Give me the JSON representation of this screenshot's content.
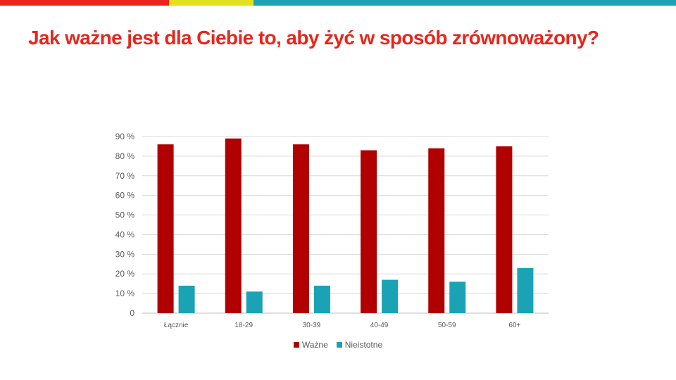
{
  "colors": {
    "stripe_red": "#e8251b",
    "stripe_yellow": "#e3e020",
    "stripe_teal": "#1aa3b5",
    "title": "#e8251b",
    "grid": "#d9d9d9",
    "axis": "#bfbfbf"
  },
  "slide": {
    "title": "Jak ważne jest dla Ciebie to, aby żyć w sposób zrównoważony?"
  },
  "chart_data": {
    "type": "bar",
    "categories": [
      "Łącznie",
      "18-29",
      "30-39",
      "40-49",
      "50-59",
      "60+"
    ],
    "series": [
      {
        "name": "Ważne",
        "color": "#b00000",
        "values": [
          86,
          89,
          86,
          83,
          84,
          85
        ]
      },
      {
        "name": "Nieistotne",
        "color": "#1aa3b5",
        "values": [
          14,
          11,
          14,
          17,
          16,
          23
        ]
      }
    ],
    "y_ticks": [
      "0",
      "10 %",
      "20 %",
      "30 %",
      "40 %",
      "50 %",
      "60 %",
      "70 %",
      "80 %",
      "90 %"
    ],
    "ylim": [
      0,
      90
    ],
    "grid": true,
    "legend_position": "bottom"
  }
}
